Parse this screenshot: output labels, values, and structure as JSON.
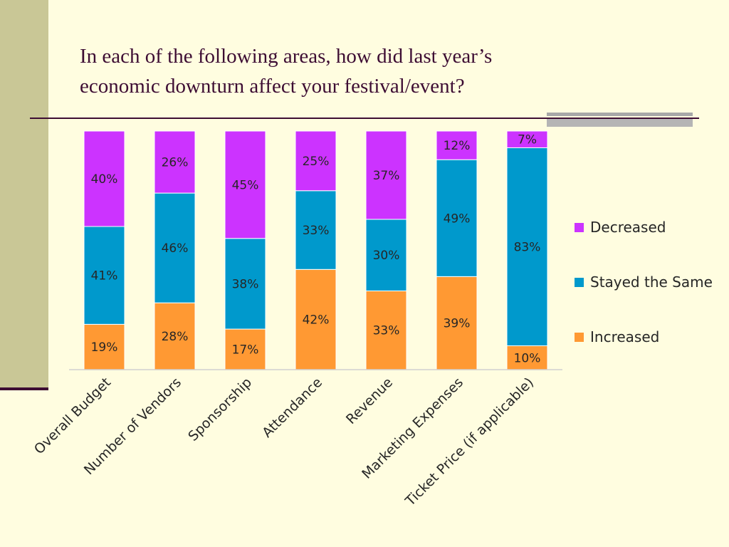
{
  "slide": {
    "title_line1": "In each of the following areas, how did last year’s",
    "title_line2": "economic downturn affect your festival/event?"
  },
  "chart_data": {
    "type": "bar",
    "stacked": true,
    "categories": [
      "Overall Budget",
      "Number of Vendors",
      "Sponsorship",
      "Attendance",
      "Revenue",
      "Marketing Expenses",
      "Ticket Price (if applicable)"
    ],
    "series": [
      {
        "name": "Increased",
        "color": "#FF9933",
        "values": [
          19,
          28,
          17,
          42,
          33,
          39,
          10
        ]
      },
      {
        "name": "Stayed the Same",
        "color": "#0099CC",
        "values": [
          41,
          46,
          38,
          33,
          30,
          49,
          83
        ]
      },
      {
        "name": "Decreased",
        "color": "#CC33FF",
        "values": [
          40,
          26,
          45,
          25,
          37,
          12,
          7
        ]
      }
    ],
    "value_suffix": "%",
    "legend": [
      "Decreased",
      "Stayed the Same",
      "Increased"
    ],
    "legend_position": "right",
    "ylim": [
      0,
      100
    ],
    "grid": false
  }
}
